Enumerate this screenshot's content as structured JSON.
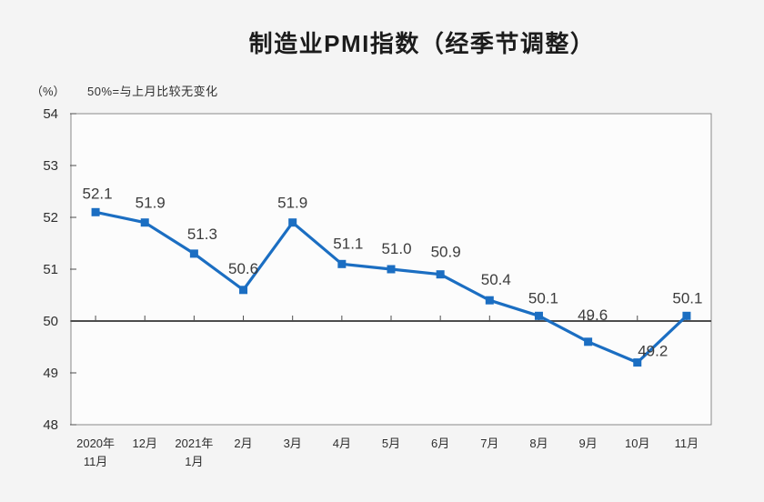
{
  "title": "制造业PMI指数（经季节调整）",
  "y_axis_unit": "（%）",
  "note": "50%=与上月比较无变化",
  "accent_color": "#1b6ec2",
  "axis_color": "#4d4d4d",
  "frame_color": "#8a8a8a",
  "chart_data": {
    "type": "line",
    "title": "制造业PMI指数（经季节调整）",
    "subtitle": "50%=与上月比较无变化",
    "ylabel": "（%）",
    "xlabel": "",
    "categories": [
      "2020年\n11月",
      "12月",
      "2021年\n1月",
      "2月",
      "3月",
      "4月",
      "5月",
      "6月",
      "7月",
      "8月",
      "9月",
      "10月",
      "11月"
    ],
    "values": [
      52.1,
      51.9,
      51.3,
      50.6,
      51.9,
      51.1,
      51.0,
      50.9,
      50.4,
      50.1,
      49.6,
      49.2,
      50.1
    ],
    "labels": [
      "52.1",
      "51.9",
      "51.3",
      "50.6",
      "51.9",
      "51.1",
      "51.0",
      "50.9",
      "50.4",
      "50.1",
      "49.6",
      "49.2",
      "50.1"
    ],
    "ylim": [
      48,
      54
    ],
    "y_ticks": [
      48,
      49,
      50,
      51,
      52,
      53,
      54
    ],
    "reference_line": 50,
    "line_color": "#1b6ec2",
    "marker": "square",
    "grid": false,
    "legend_position": "none"
  }
}
